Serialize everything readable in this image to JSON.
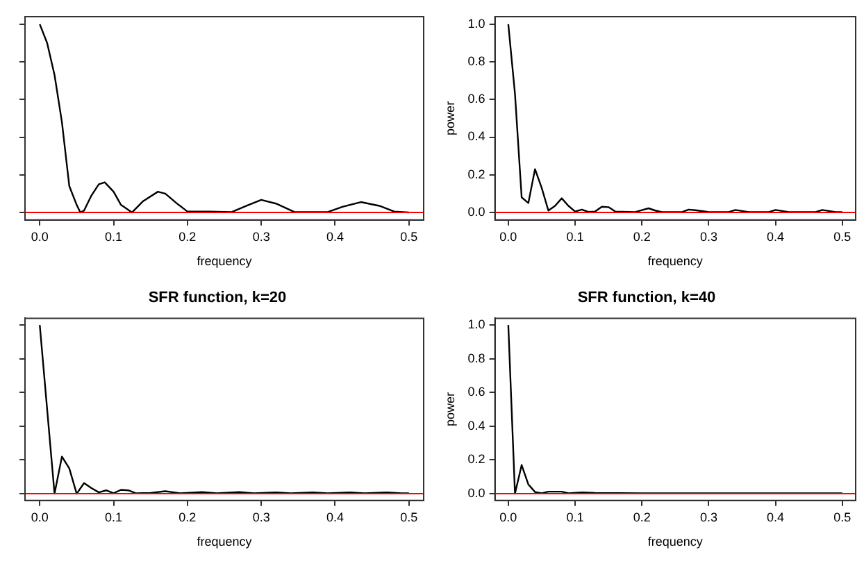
{
  "chart_data": [
    {
      "type": "line",
      "xlabel": "frequency",
      "tick_labels": "x",
      "color": "#000000",
      "x": [
        0,
        0.01,
        0.02,
        0.03,
        0.04,
        0.05,
        0.055,
        0.06,
        0.07,
        0.08,
        0.088,
        0.1,
        0.11,
        0.125,
        0.14,
        0.16,
        0.17,
        0.185,
        0.2,
        0.23,
        0.26,
        0.28,
        0.3,
        0.32,
        0.345,
        0.39,
        0.41,
        0.435,
        0.46,
        0.48,
        0.5
      ],
      "values": [
        1.0,
        0.9,
        0.73,
        0.48,
        0.14,
        0.04,
        0,
        0.01,
        0.09,
        0.15,
        0.16,
        0.11,
        0.04,
        0,
        0.06,
        0.11,
        0.1,
        0.05,
        0.005,
        0.005,
        0.002,
        0.035,
        0.067,
        0.047,
        0.002,
        0.002,
        0.03,
        0.055,
        0.035,
        0.005,
        0
      ],
      "xlim": [
        -0.02,
        0.52
      ],
      "xticks": [
        {
          "value": 0,
          "label": "0.0"
        },
        {
          "value": 0.1,
          "label": "0.1"
        },
        {
          "value": 0.2,
          "label": "0.2"
        },
        {
          "value": 0.3,
          "label": "0.3"
        },
        {
          "value": 0.4,
          "label": "0.4"
        },
        {
          "value": 0.5,
          "label": "0.5"
        }
      ],
      "ylim": [
        -0.04,
        1.04
      ],
      "yticks": [
        {
          "value": 0,
          "label": null
        },
        {
          "value": 0.2,
          "label": null
        },
        {
          "value": 0.4,
          "label": null
        },
        {
          "value": 0.6,
          "label": null
        },
        {
          "value": 0.8,
          "label": null
        },
        {
          "value": 1,
          "label": null
        }
      ],
      "ref_lines": [
        {
          "axis": "y",
          "value": 0,
          "color": "#ff0000"
        }
      ]
    },
    {
      "type": "line",
      "xlabel": "frequency",
      "ylabel": "power",
      "color": "#000000",
      "x": [
        0,
        0.01,
        0.02,
        0.03,
        0.04,
        0.05,
        0.06,
        0.07,
        0.08,
        0.09,
        0.1,
        0.11,
        0.12,
        0.13,
        0.14,
        0.15,
        0.16,
        0.19,
        0.2,
        0.21,
        0.22,
        0.23,
        0.26,
        0.27,
        0.28,
        0.3,
        0.33,
        0.34,
        0.36,
        0.39,
        0.4,
        0.42,
        0.46,
        0.47,
        0.49,
        0.5
      ],
      "values": [
        1.0,
        0.63,
        0.08,
        0.05,
        0.23,
        0.13,
        0.01,
        0.035,
        0.075,
        0.035,
        0.005,
        0.015,
        0.003,
        0.005,
        0.03,
        0.028,
        0.005,
        0.002,
        0.012,
        0.022,
        0.01,
        0.002,
        0.002,
        0.015,
        0.012,
        0.002,
        0.002,
        0.013,
        0.002,
        0.002,
        0.013,
        0.002,
        0.002,
        0.013,
        0.002,
        0.002
      ],
      "xlim": [
        -0.02,
        0.52
      ],
      "xticks": [
        {
          "value": 0,
          "label": "0.0"
        },
        {
          "value": 0.1,
          "label": "0.1"
        },
        {
          "value": 0.2,
          "label": "0.2"
        },
        {
          "value": 0.3,
          "label": "0.3"
        },
        {
          "value": 0.4,
          "label": "0.4"
        },
        {
          "value": 0.5,
          "label": "0.5"
        }
      ],
      "ylim": [
        -0.04,
        1.04
      ],
      "yticks": [
        {
          "value": 0,
          "label": "0.0"
        },
        {
          "value": 0.2,
          "label": "0.2"
        },
        {
          "value": 0.4,
          "label": "0.4"
        },
        {
          "value": 0.6,
          "label": "0.6"
        },
        {
          "value": 0.8,
          "label": "0.8"
        },
        {
          "value": 1,
          "label": "1.0"
        }
      ],
      "ref_lines": [
        {
          "axis": "y",
          "value": 0,
          "color": "#ff0000"
        }
      ]
    },
    {
      "type": "line",
      "title": "SFR function, k=20",
      "xlabel": "frequency",
      "tick_labels": "x",
      "color": "#000000",
      "x": [
        0,
        0.02,
        0.03,
        0.04,
        0.05,
        0.06,
        0.07,
        0.08,
        0.09,
        0.1,
        0.11,
        0.12,
        0.13,
        0.15,
        0.17,
        0.19,
        0.22,
        0.24,
        0.27,
        0.29,
        0.32,
        0.34,
        0.37,
        0.39,
        0.42,
        0.44,
        0.47,
        0.49,
        0.5
      ],
      "values": [
        1.0,
        0,
        0.22,
        0.15,
        0,
        0.063,
        0.033,
        0.008,
        0.02,
        0.003,
        0.023,
        0.02,
        0.003,
        0.005,
        0.015,
        0.003,
        0.01,
        0.003,
        0.01,
        0.003,
        0.008,
        0.003,
        0.008,
        0.003,
        0.008,
        0.003,
        0.008,
        0.003,
        0.003
      ],
      "xlim": [
        -0.02,
        0.52
      ],
      "xticks": [
        {
          "value": 0,
          "label": "0.0"
        },
        {
          "value": 0.1,
          "label": "0.1"
        },
        {
          "value": 0.2,
          "label": "0.2"
        },
        {
          "value": 0.3,
          "label": "0.3"
        },
        {
          "value": 0.4,
          "label": "0.4"
        },
        {
          "value": 0.5,
          "label": "0.5"
        }
      ],
      "ylim": [
        -0.04,
        1.04
      ],
      "yticks": [
        {
          "value": 0,
          "label": null
        },
        {
          "value": 0.2,
          "label": null
        },
        {
          "value": 0.4,
          "label": null
        },
        {
          "value": 0.6,
          "label": null
        },
        {
          "value": 0.8,
          "label": null
        },
        {
          "value": 1,
          "label": null
        }
      ],
      "ref_lines": [
        {
          "axis": "y",
          "value": 0,
          "color": "#ff0000"
        }
      ]
    },
    {
      "type": "line",
      "title": "SFR function, k=40",
      "xlabel": "frequency",
      "ylabel": "power",
      "color": "#000000",
      "x": [
        0,
        0.01,
        0.02,
        0.03,
        0.04,
        0.05,
        0.06,
        0.07,
        0.08,
        0.09,
        0.11,
        0.13,
        0.2,
        0.3,
        0.4,
        0.5
      ],
      "values": [
        1.0,
        0,
        0.17,
        0.055,
        0.01,
        0.003,
        0.012,
        0.012,
        0.012,
        0.003,
        0.008,
        0.005,
        0.003,
        0.003,
        0.003,
        0.003
      ],
      "xlim": [
        -0.02,
        0.52
      ],
      "xticks": [
        {
          "value": 0,
          "label": "0.0"
        },
        {
          "value": 0.1,
          "label": "0.1"
        },
        {
          "value": 0.2,
          "label": "0.2"
        },
        {
          "value": 0.3,
          "label": "0.3"
        },
        {
          "value": 0.4,
          "label": "0.4"
        },
        {
          "value": 0.5,
          "label": "0.5"
        }
      ],
      "ylim": [
        -0.04,
        1.04
      ],
      "yticks": [
        {
          "value": 0,
          "label": "0.0"
        },
        {
          "value": 0.2,
          "label": "0.2"
        },
        {
          "value": 0.4,
          "label": "0.4"
        },
        {
          "value": 0.6,
          "label": "0.6"
        },
        {
          "value": 0.8,
          "label": "0.8"
        },
        {
          "value": 1,
          "label": "1.0"
        }
      ],
      "ref_lines": [
        {
          "axis": "y",
          "value": 0,
          "color": "#ff0000"
        }
      ]
    }
  ]
}
